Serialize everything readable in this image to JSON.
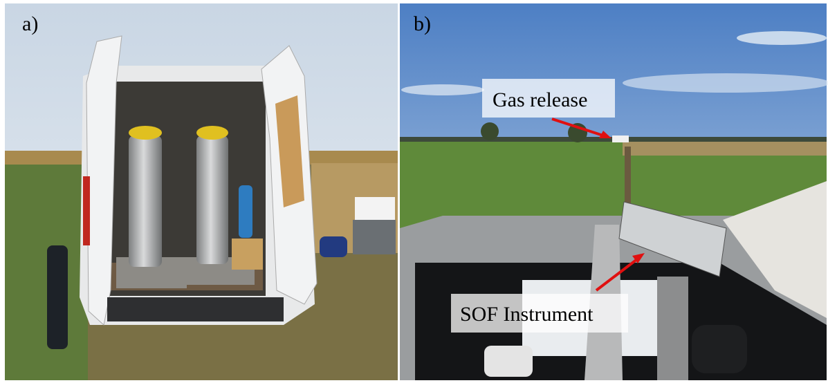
{
  "panels": [
    {
      "label": "a)"
    },
    {
      "label": "b)",
      "annotations": [
        {
          "text": "Gas release"
        },
        {
          "text": "SOF Instrument"
        }
      ]
    }
  ]
}
